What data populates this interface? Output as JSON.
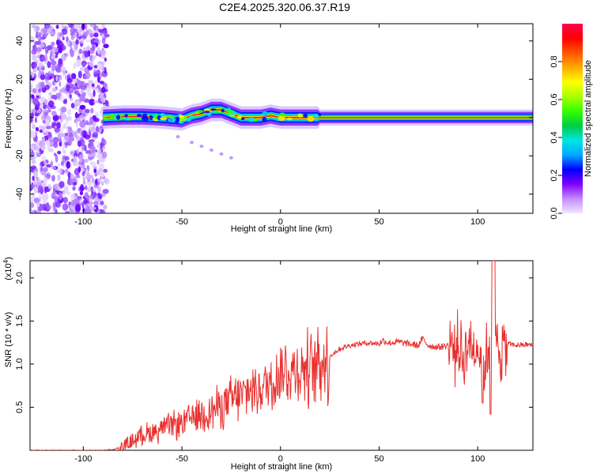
{
  "figure": {
    "title": "C2E4.2025.320.06.37.R19"
  },
  "chart_data": [
    {
      "type": "heatmap",
      "xlabel": "Height of straight line (km)",
      "ylabel": "Frequency (Hz)",
      "xlim": [
        -127,
        128
      ],
      "ylim": [
        -50,
        49
      ],
      "xticks": [
        -100,
        -50,
        0,
        50,
        100
      ],
      "yticks": [
        -40,
        -20,
        0,
        20,
        40
      ],
      "colorbar": {
        "label": "Normalized spectral amplitude",
        "range": [
          0.0,
          1.0
        ],
        "ticks": [
          0.0,
          0.2,
          0.4,
          0.6,
          0.8
        ],
        "colors": [
          "#f2e6ff",
          "#c28cff",
          "#8000ff",
          "#0000ff",
          "#00aaff",
          "#00e5e5",
          "#00cc44",
          "#33ff00",
          "#aaff00",
          "#ffff00",
          "#ffaa00",
          "#ff5500",
          "#ff0000",
          "#ff0050"
        ]
      },
      "noise_region": {
        "x_range": [
          -127,
          -88
        ],
        "y_range": [
          -50,
          49
        ]
      },
      "ridge": {
        "x": [
          -90,
          -80,
          -70,
          -60,
          -50,
          -45,
          -40,
          -35,
          -30,
          -25,
          -20,
          -15,
          -10,
          -5,
          0,
          10,
          20,
          30,
          50,
          70,
          90,
          100,
          110,
          128
        ],
        "y": [
          0,
          0.5,
          0.5,
          0,
          -1,
          1,
          2,
          4,
          4,
          2,
          0,
          0,
          0,
          1,
          0,
          0,
          0,
          0,
          0,
          0,
          0,
          0,
          0,
          0
        ]
      },
      "faint_trail": {
        "x": [
          -52,
          -45,
          -40,
          -35,
          -30,
          -25
        ],
        "y": [
          -10,
          -13,
          -15,
          -17,
          -19,
          -21
        ]
      }
    },
    {
      "type": "line",
      "xlabel": "Height of straight line (km)",
      "ylabel": "SNR (10 * v/v)",
      "y_multiplier_label": "(x10^4)",
      "xlim": [
        -127,
        128
      ],
      "ylim": [
        0,
        2.2
      ],
      "xticks": [
        -100,
        -50,
        0,
        50,
        100
      ],
      "yticks": [
        0.5,
        1.0,
        1.5,
        2.0
      ],
      "line_color": "#e8302e",
      "series": [
        {
          "x": [
            -127,
            -100,
            -90,
            -85,
            -82,
            -80,
            -75,
            -70,
            -65,
            -60,
            -55,
            -50,
            -45,
            -40,
            -35,
            -30,
            -25,
            -20,
            -15,
            -10,
            -5,
            -3,
            0,
            5,
            10,
            15,
            20,
            25,
            30,
            35,
            40,
            45,
            50,
            52,
            55,
            60,
            65,
            70,
            72,
            75,
            80,
            85,
            90,
            93,
            95,
            97,
            100,
            103,
            106,
            108,
            110,
            112,
            115,
            120,
            125,
            128
          ],
          "y": [
            0.0,
            0.0,
            0.0,
            0.01,
            0.03,
            0.05,
            0.12,
            0.2,
            0.22,
            0.27,
            0.3,
            0.33,
            0.4,
            0.45,
            0.48,
            0.55,
            0.6,
            0.65,
            0.72,
            0.75,
            0.82,
            0.85,
            0.95,
            0.93,
            0.97,
            1.0,
            1.05,
            1.1,
            1.18,
            1.22,
            1.24,
            1.25,
            1.24,
            1.28,
            1.25,
            1.26,
            1.24,
            1.22,
            1.3,
            1.22,
            1.2,
            1.22,
            1.25,
            1.1,
            1.3,
            1.22,
            1.25,
            1.0,
            1.3,
            1.25,
            1.22,
            1.22,
            1.24,
            1.22,
            1.23,
            1.22
          ]
        }
      ]
    }
  ]
}
